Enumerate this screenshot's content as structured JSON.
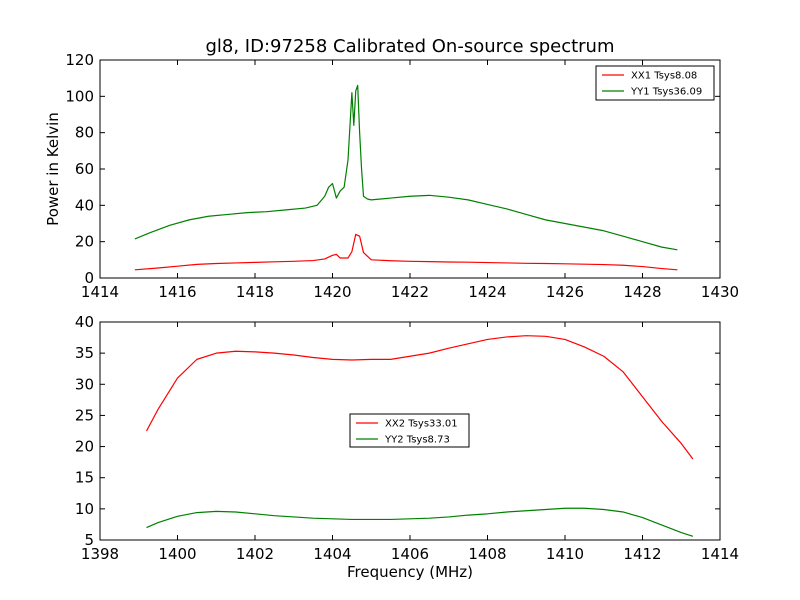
{
  "chart_data": [
    {
      "type": "line",
      "title": "gl8, ID:97258 Calibrated On-source spectrum",
      "xlabel": "",
      "ylabel": "Power in Kelvin",
      "xlim": [
        1414,
        1430
      ],
      "ylim": [
        0,
        120
      ],
      "xticks": [
        1414,
        1416,
        1418,
        1420,
        1422,
        1424,
        1426,
        1428,
        1430
      ],
      "yticks": [
        0,
        20,
        40,
        60,
        80,
        100,
        120
      ],
      "legend_position": "top-right",
      "series": [
        {
          "name": "XX1 Tsys8.08",
          "color": "#ff0000",
          "x": [
            1414.9,
            1415.5,
            1416.0,
            1416.5,
            1417.0,
            1417.5,
            1418.0,
            1418.5,
            1419.0,
            1419.5,
            1419.8,
            1420.0,
            1420.1,
            1420.2,
            1420.4,
            1420.5,
            1420.6,
            1420.7,
            1420.8,
            1421.0,
            1421.5,
            1422.0,
            1422.5,
            1423.0,
            1423.5,
            1424.0,
            1424.5,
            1425.0,
            1425.5,
            1426.0,
            1426.5,
            1427.0,
            1427.5,
            1428.0,
            1428.5,
            1428.9
          ],
          "values": [
            4.5,
            5.5,
            6.5,
            7.5,
            8.0,
            8.3,
            8.6,
            8.9,
            9.2,
            9.6,
            10.5,
            12.5,
            13,
            11,
            11,
            14.5,
            24,
            23,
            14,
            10,
            9.5,
            9.2,
            9.0,
            8.8,
            8.7,
            8.5,
            8.3,
            8.1,
            8.0,
            7.8,
            7.6,
            7.4,
            7.0,
            6.3,
            5.2,
            4.5
          ]
        },
        {
          "name": "YY1 Tsys36.09",
          "color": "#008000",
          "x": [
            1414.9,
            1415.3,
            1415.8,
            1416.3,
            1416.8,
            1417.3,
            1417.8,
            1418.3,
            1418.8,
            1419.3,
            1419.6,
            1419.8,
            1419.9,
            1420.0,
            1420.1,
            1420.2,
            1420.3,
            1420.4,
            1420.5,
            1420.55,
            1420.6,
            1420.65,
            1420.7,
            1420.75,
            1420.8,
            1420.9,
            1421.0,
            1421.5,
            1422.0,
            1422.5,
            1423.0,
            1423.5,
            1424.0,
            1424.5,
            1425.0,
            1425.5,
            1426.0,
            1426.5,
            1427.0,
            1427.5,
            1428.0,
            1428.5,
            1428.9
          ],
          "values": [
            21.5,
            25,
            29,
            32,
            34,
            35,
            36,
            36.5,
            37.5,
            38.5,
            40,
            45,
            50,
            52,
            44,
            48,
            50,
            65,
            102,
            84,
            103,
            106,
            80,
            60,
            45,
            43.5,
            43,
            44,
            45,
            45.5,
            44.5,
            43,
            40.5,
            38,
            35,
            32,
            30,
            28,
            26,
            23,
            20,
            17,
            15.5
          ]
        }
      ]
    },
    {
      "type": "line",
      "title": "",
      "xlabel": "Frequency (MHz)",
      "ylabel": "",
      "xlim": [
        1398,
        1414
      ],
      "ylim": [
        5,
        40
      ],
      "xticks": [
        1398,
        1400,
        1402,
        1404,
        1406,
        1408,
        1410,
        1412,
        1414
      ],
      "yticks": [
        5,
        10,
        15,
        20,
        25,
        30,
        35,
        40
      ],
      "legend_position": "center",
      "series": [
        {
          "name": "XX2 Tsys33.01",
          "color": "#ff0000",
          "x": [
            1399.2,
            1399.5,
            1400.0,
            1400.5,
            1401.0,
            1401.5,
            1402.0,
            1402.5,
            1403.0,
            1403.5,
            1404.0,
            1404.5,
            1405.0,
            1405.5,
            1406.0,
            1406.5,
            1407.0,
            1407.5,
            1408.0,
            1408.5,
            1409.0,
            1409.5,
            1410.0,
            1410.5,
            1411.0,
            1411.5,
            1412.0,
            1412.5,
            1413.0,
            1413.3
          ],
          "values": [
            22.5,
            26,
            31,
            34,
            35,
            35.3,
            35.2,
            35.0,
            34.7,
            34.3,
            34.0,
            33.9,
            34.0,
            34.0,
            34.5,
            35.0,
            35.8,
            36.5,
            37.2,
            37.6,
            37.8,
            37.7,
            37.2,
            36.0,
            34.5,
            32.0,
            28.0,
            24.0,
            20.5,
            18.0
          ]
        },
        {
          "name": "YY2 Tsys8.73",
          "color": "#008000",
          "x": [
            1399.2,
            1399.5,
            1400.0,
            1400.5,
            1401.0,
            1401.5,
            1402.0,
            1402.5,
            1403.0,
            1403.5,
            1404.0,
            1404.5,
            1405.0,
            1405.5,
            1406.0,
            1406.5,
            1407.0,
            1407.5,
            1408.0,
            1408.5,
            1409.0,
            1409.5,
            1410.0,
            1410.5,
            1411.0,
            1411.5,
            1412.0,
            1412.5,
            1413.0,
            1413.3
          ],
          "values": [
            7.0,
            7.8,
            8.8,
            9.4,
            9.6,
            9.5,
            9.2,
            8.9,
            8.7,
            8.5,
            8.4,
            8.3,
            8.3,
            8.3,
            8.4,
            8.5,
            8.7,
            9.0,
            9.2,
            9.5,
            9.7,
            9.9,
            10.1,
            10.1,
            9.9,
            9.5,
            8.6,
            7.4,
            6.2,
            5.6
          ]
        }
      ]
    }
  ]
}
